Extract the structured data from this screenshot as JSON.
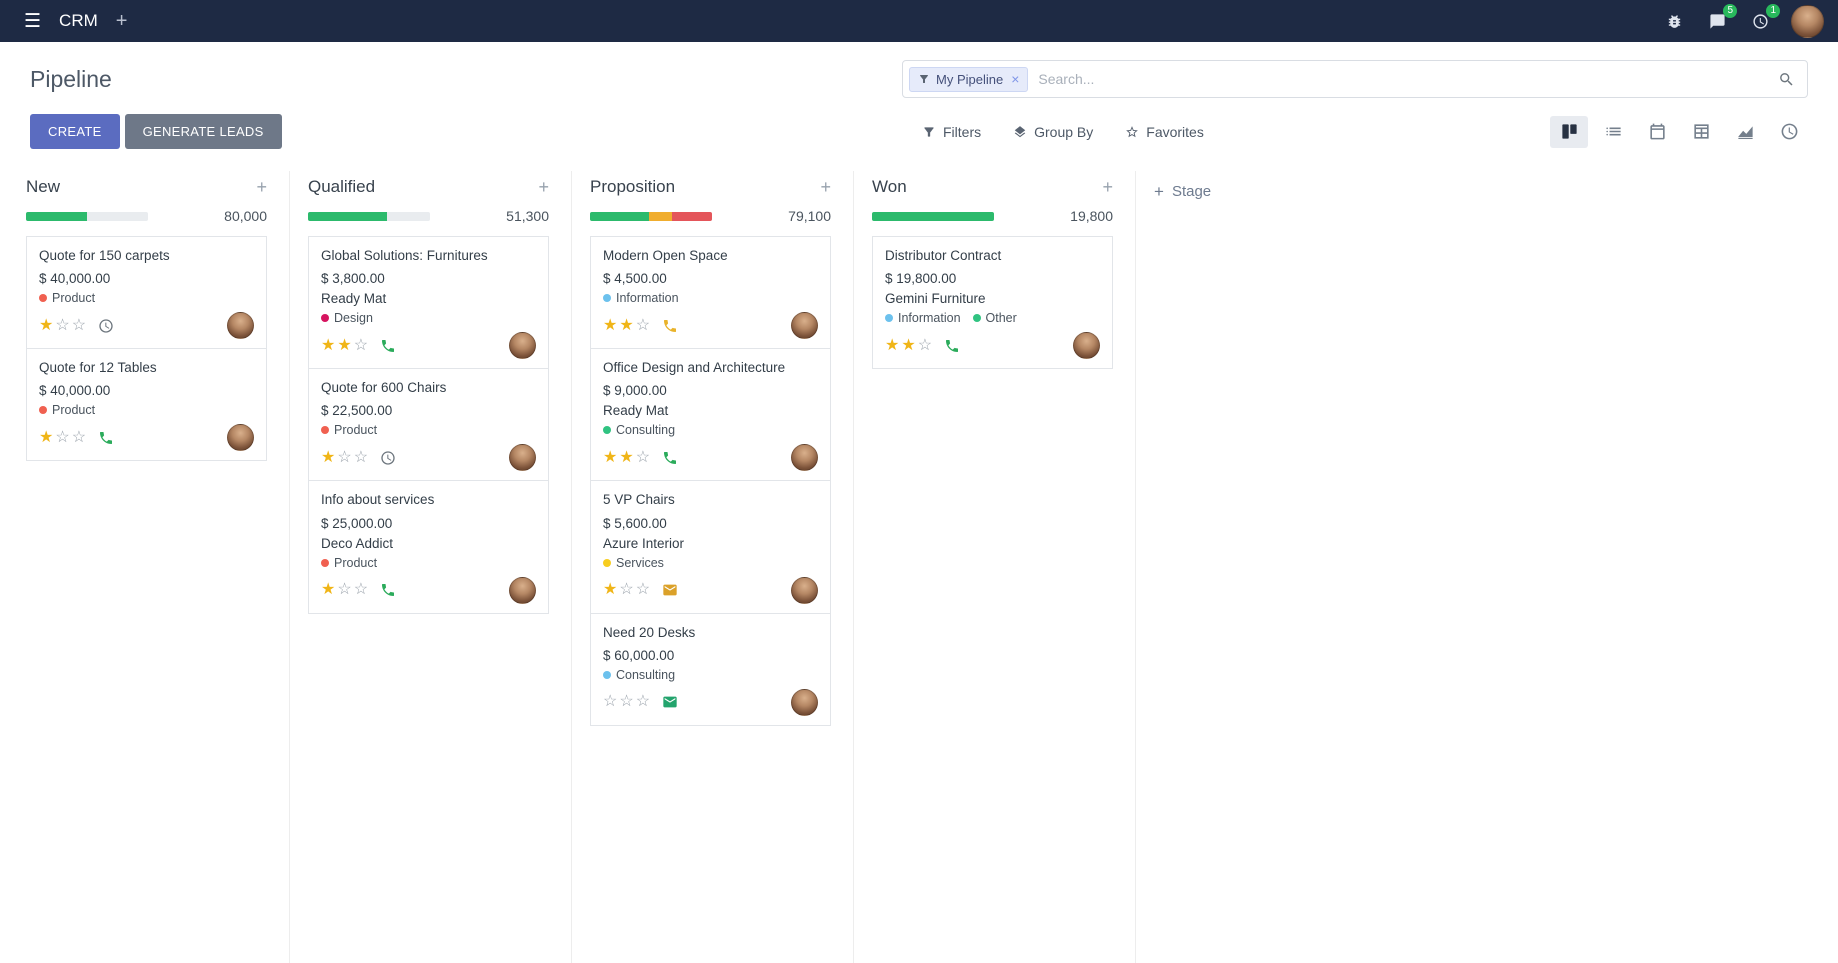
{
  "navbar": {
    "app_name": "CRM",
    "systray": {
      "messages_badge": "5",
      "activities_badge": "1"
    }
  },
  "control_panel": {
    "title": "Pipeline",
    "create_label": "CREATE",
    "generate_leads_label": "GENERATE LEADS",
    "search": {
      "facet_label": "My Pipeline",
      "placeholder": "Search..."
    },
    "menus": {
      "filters": "Filters",
      "group_by": "Group By",
      "favorites": "Favorites"
    },
    "active_view": "kanban",
    "view_switcher_icons": [
      "kanban-view-icon",
      "list-view-icon",
      "calendar-view-icon",
      "pivot-view-icon",
      "graph-view-icon",
      "activity-view-icon"
    ]
  },
  "theme": {
    "navbar_bg": "#1e2a44",
    "primary": "#5b6cc0",
    "secondary": "#6e7888",
    "success": "#2cba6c",
    "warning": "#f0ad2e",
    "danger": "#e4555a",
    "star_gold": "#f0b517"
  },
  "icons": {
    "navbar": [
      "menu-icon",
      "plus-icon",
      "debug-icon",
      "messages-icon",
      "activities-icon",
      "user-avatar"
    ],
    "search": [
      "filter-icon",
      "remove-facet-icon",
      "search-icon"
    ],
    "menus": [
      "filter-icon",
      "layers-icon",
      "star-icon"
    ],
    "card": [
      "priority-star-icon",
      "phone-icon",
      "mail-icon",
      "clock-icon",
      "avatar"
    ]
  },
  "kanban": {
    "add_stage_label": "Stage",
    "columns": [
      {
        "name": "New",
        "total": "80,000",
        "progress": [
          {
            "color": "#2cba6c",
            "pct": 50
          }
        ],
        "cards": [
          {
            "title": "Quote for 150 carpets",
            "amount": "$ 40,000.00",
            "partner": null,
            "tags": [
              {
                "label": "Product",
                "color": "#f06050"
              }
            ],
            "stars": 1,
            "activity": {
              "icon": "clock-icon",
              "color": "#6c757d"
            }
          },
          {
            "title": "Quote for 12 Tables",
            "amount": "$ 40,000.00",
            "partner": null,
            "tags": [
              {
                "label": "Product",
                "color": "#f06050"
              }
            ],
            "stars": 1,
            "activity": {
              "icon": "phone-icon",
              "color": "#2bab5b"
            }
          }
        ]
      },
      {
        "name": "Qualified",
        "total": "51,300",
        "progress": [
          {
            "color": "#2cba6c",
            "pct": 65
          }
        ],
        "cards": [
          {
            "title": "Global Solutions: Furnitures",
            "amount": "$ 3,800.00",
            "partner": "Ready Mat",
            "tags": [
              {
                "label": "Design",
                "color": "#d6145f"
              }
            ],
            "stars": 2,
            "activity": {
              "icon": "phone-icon",
              "color": "#2bab5b"
            }
          },
          {
            "title": "Quote for 600 Chairs",
            "amount": "$ 22,500.00",
            "partner": null,
            "tags": [
              {
                "label": "Product",
                "color": "#f06050"
              }
            ],
            "stars": 1,
            "activity": {
              "icon": "clock-icon",
              "color": "#6c757d"
            }
          },
          {
            "title": "Info about services",
            "amount": "$ 25,000.00",
            "partner": "Deco Addict",
            "tags": [
              {
                "label": "Product",
                "color": "#f06050"
              }
            ],
            "stars": 1,
            "activity": {
              "icon": "phone-icon",
              "color": "#2bab5b"
            }
          }
        ]
      },
      {
        "name": "Proposition",
        "total": "79,100",
        "progress": [
          {
            "color": "#2cba6c",
            "pct": 48
          },
          {
            "color": "#f0ad2e",
            "pct": 19
          },
          {
            "color": "#e4555a",
            "pct": 33
          }
        ],
        "cards": [
          {
            "title": "Modern Open Space",
            "amount": "$ 4,500.00",
            "partner": null,
            "tags": [
              {
                "label": "Information",
                "color": "#6cc1ed"
              }
            ],
            "stars": 2,
            "activity": {
              "icon": "phone-icon",
              "color": "#e9b32b"
            }
          },
          {
            "title": "Office Design and Architecture",
            "amount": "$ 9,000.00",
            "partner": "Ready Mat",
            "tags": [
              {
                "label": "Consulting",
                "color": "#30c381"
              }
            ],
            "stars": 2,
            "activity": {
              "icon": "phone-icon",
              "color": "#2bab5b"
            }
          },
          {
            "title": "5 VP Chairs",
            "amount": "$ 5,600.00",
            "partner": "Azure Interior",
            "tags": [
              {
                "label": "Services",
                "color": "#f7cd1f"
              }
            ],
            "stars": 1,
            "activity": {
              "icon": "mail-icon",
              "color": "#dba129"
            }
          },
          {
            "title": "Need 20 Desks",
            "amount": "$ 60,000.00",
            "partner": null,
            "tags": [
              {
                "label": "Consulting",
                "color": "#6cc1ed"
              }
            ],
            "stars": 0,
            "activity": {
              "icon": "mail-icon",
              "color": "#23a46d"
            }
          }
        ]
      },
      {
        "name": "Won",
        "total": "19,800",
        "progress": [
          {
            "color": "#2cba6c",
            "pct": 100
          }
        ],
        "cards": [
          {
            "title": "Distributor Contract",
            "amount": "$ 19,800.00",
            "partner": "Gemini Furniture",
            "tags": [
              {
                "label": "Information",
                "color": "#6cc1ed"
              },
              {
                "label": "Other",
                "color": "#30c381"
              }
            ],
            "stars": 2,
            "activity": {
              "icon": "phone-icon",
              "color": "#2bab5b"
            }
          }
        ]
      }
    ]
  }
}
